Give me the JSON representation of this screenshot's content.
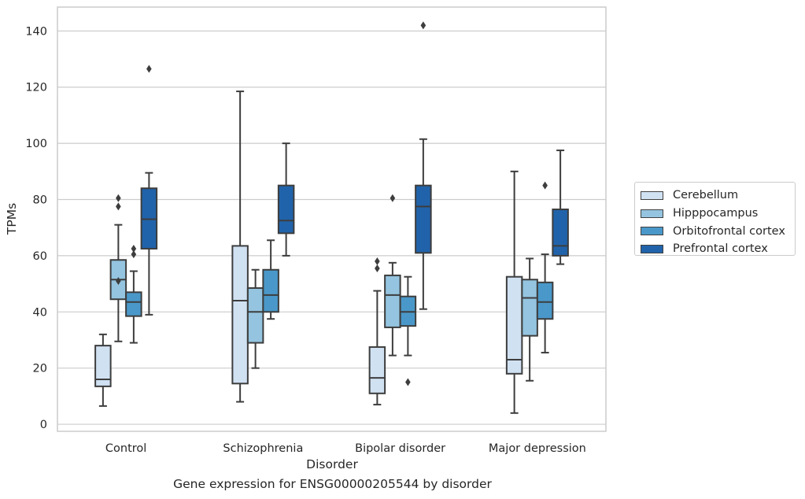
{
  "chart_data": {
    "type": "box",
    "xlabel": "Disorder",
    "ylabel": "TPMs",
    "caption": "Gene expression for ENSG00000205544 by disorder",
    "categories": [
      "Control",
      "Schizophrenia",
      "Bipolar disorder",
      "Major depression"
    ],
    "yticks": [
      0,
      20,
      40,
      60,
      80,
      100,
      120,
      140
    ],
    "ylim": [
      -2.5,
      148.5
    ],
    "grid": "horizontal",
    "legend_position": "right",
    "series": [
      {
        "name": "Cerebellum",
        "color": "#d0e1f2",
        "boxes": [
          {
            "whisker_low": 6.5,
            "q1": 13.5,
            "median": 16.0,
            "q3": 28.0,
            "whisker_high": 32.0,
            "outliers": []
          },
          {
            "whisker_low": 8.0,
            "q1": 14.5,
            "median": 44.0,
            "q3": 63.5,
            "whisker_high": 118.5,
            "outliers": []
          },
          {
            "whisker_low": 7.0,
            "q1": 11.0,
            "median": 16.5,
            "q3": 27.5,
            "whisker_high": 47.5,
            "outliers": [
              55.5,
              58.0
            ]
          },
          {
            "whisker_low": 4.0,
            "q1": 18.0,
            "median": 23.0,
            "q3": 52.5,
            "whisker_high": 90.0,
            "outliers": []
          }
        ]
      },
      {
        "name": "Hipppocampus",
        "color": "#94c4df",
        "boxes": [
          {
            "whisker_low": 29.5,
            "q1": 44.5,
            "median": 51.5,
            "q3": 58.5,
            "whisker_high": 71.0,
            "outliers": [
              51.0,
              77.5,
              80.5
            ]
          },
          {
            "whisker_low": 20.0,
            "q1": 29.0,
            "median": 40.0,
            "q3": 48.5,
            "whisker_high": 55.0,
            "outliers": []
          },
          {
            "whisker_low": 24.5,
            "q1": 34.5,
            "median": 46.0,
            "q3": 53.0,
            "whisker_high": 57.5,
            "outliers": [
              80.5
            ]
          },
          {
            "whisker_low": 15.5,
            "q1": 31.5,
            "median": 45.0,
            "q3": 51.5,
            "whisker_high": 59.0,
            "outliers": []
          }
        ]
      },
      {
        "name": "Orbitofrontal cortex",
        "color": "#4a98c9",
        "boxes": [
          {
            "whisker_low": 29.0,
            "q1": 38.5,
            "median": 43.5,
            "q3": 47.0,
            "whisker_high": 54.5,
            "outliers": [
              60.5,
              62.5
            ]
          },
          {
            "whisker_low": 37.5,
            "q1": 40.0,
            "median": 46.0,
            "q3": 55.0,
            "whisker_high": 65.5,
            "outliers": []
          },
          {
            "whisker_low": 24.5,
            "q1": 35.0,
            "median": 40.0,
            "q3": 45.5,
            "whisker_high": 52.5,
            "outliers": [
              15.0
            ]
          },
          {
            "whisker_low": 25.5,
            "q1": 37.5,
            "median": 43.5,
            "q3": 50.5,
            "whisker_high": 60.5,
            "outliers": [
              85.0
            ]
          }
        ]
      },
      {
        "name": "Prefrontal cortex",
        "color": "#2163aa",
        "boxes": [
          {
            "whisker_low": 39.0,
            "q1": 62.5,
            "median": 73.0,
            "q3": 84.0,
            "whisker_high": 89.5,
            "outliers": [
              126.5
            ]
          },
          {
            "whisker_low": 60.0,
            "q1": 68.0,
            "median": 72.5,
            "q3": 85.0,
            "whisker_high": 100.0,
            "outliers": []
          },
          {
            "whisker_low": 41.0,
            "q1": 61.0,
            "median": 77.5,
            "q3": 85.0,
            "whisker_high": 101.5,
            "outliers": [
              142.0
            ]
          },
          {
            "whisker_low": 57.0,
            "q1": 60.0,
            "median": 63.5,
            "q3": 76.5,
            "whisker_high": 97.5,
            "outliers": []
          }
        ]
      }
    ]
  }
}
